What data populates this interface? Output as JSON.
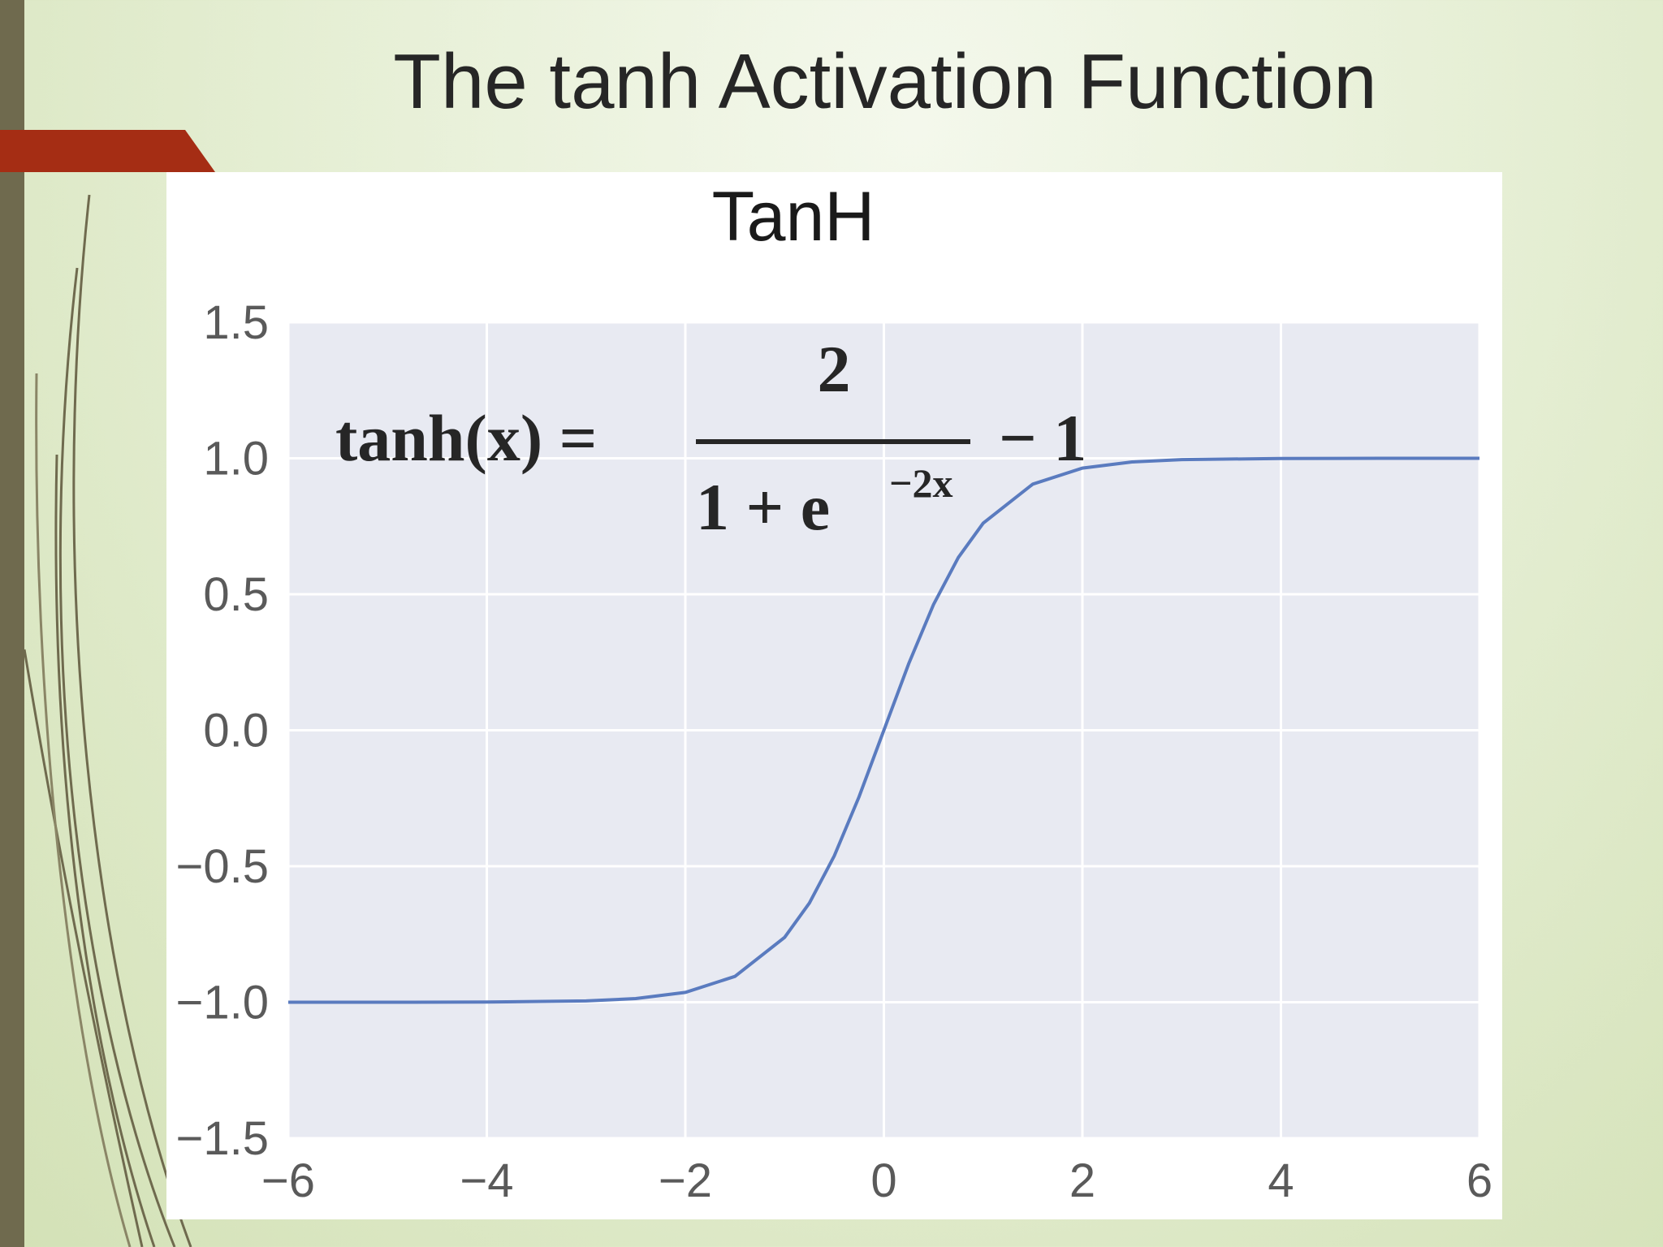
{
  "slide": {
    "title": "The tanh Activation Function"
  },
  "colors": {
    "accent_bar": "#a52d14",
    "left_bar": "#6f6a4e",
    "plot_background": "#e8eaf2",
    "curve": "#5a7bbf",
    "grid": "#ffffff"
  },
  "chart_data": {
    "type": "line",
    "title": "TanH",
    "xlabel": "",
    "ylabel": "",
    "xlim": [
      -6,
      6
    ],
    "ylim": [
      -1.5,
      1.5
    ],
    "grid": true,
    "x_ticks": [
      -6,
      -4,
      -2,
      0,
      2,
      4,
      6
    ],
    "x_tick_labels": [
      "−6",
      "−4",
      "−2",
      "0",
      "2",
      "4",
      "6"
    ],
    "y_ticks": [
      -1.5,
      -1.0,
      -0.5,
      0.0,
      0.5,
      1.0,
      1.5
    ],
    "y_tick_labels": [
      "−1.5",
      "−1.0",
      "−0.5",
      "0.0",
      "0.5",
      "1.0",
      "1.5"
    ],
    "series": [
      {
        "function": "tanh(x)",
        "x": [
          -6,
          -5,
          -4,
          -3,
          -2.5,
          -2,
          -1.5,
          -1,
          -0.75,
          -0.5,
          -0.25,
          0,
          0.25,
          0.5,
          0.75,
          1,
          1.5,
          2,
          2.5,
          3,
          4,
          5,
          6
        ],
        "y": [
          -1.0,
          -0.9999,
          -0.9993,
          -0.9951,
          -0.9866,
          -0.964,
          -0.9051,
          -0.7616,
          -0.6351,
          -0.4621,
          -0.2449,
          0.0,
          0.2449,
          0.4621,
          0.6351,
          0.7616,
          0.9051,
          0.964,
          0.9866,
          0.9951,
          0.9993,
          0.9999,
          1.0
        ]
      }
    ],
    "annotation": {
      "lhs": "tanh(x) =",
      "numerator": "2",
      "denominator_base": "1 + e",
      "exponent": "−2x",
      "tail": "− 1"
    }
  }
}
